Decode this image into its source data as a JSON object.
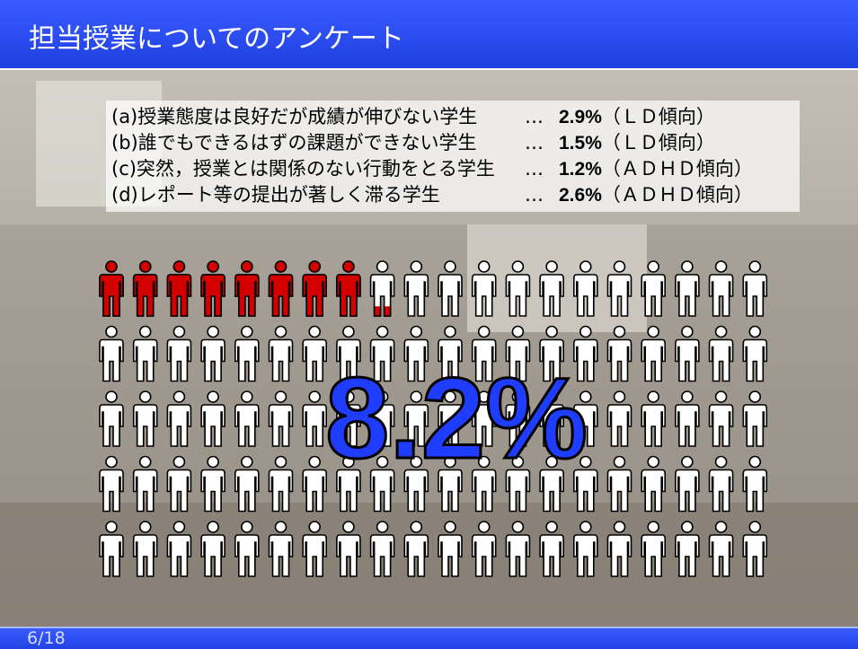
{
  "header": {
    "title": "担当授業についてのアンケート"
  },
  "items": [
    {
      "text": "(a)授業態度は良好だが成績が伸びない学生",
      "leader": "…",
      "value": "2.9%",
      "note": "（ＬＤ傾向）"
    },
    {
      "text": "(b)誰でもできるはずの課題ができない学生",
      "leader": "…",
      "value": "1.5%",
      "note": "（ＬＤ傾向）"
    },
    {
      "text": "(c)突然，授業とは関係のない行動をとる学生",
      "leader": "…",
      "value": "1.2%",
      "note": "（ＡＤＨＤ傾向）"
    },
    {
      "text": "(d)レポート等の提出が著しく滞る学生",
      "leader": "…",
      "value": "2.6%",
      "note": "（ＡＤＨＤ傾向）"
    }
  ],
  "pictograph": {
    "value": 8.2,
    "label": "8.2%",
    "color": "#d40000"
  },
  "footer": {
    "page": "6/18"
  }
}
